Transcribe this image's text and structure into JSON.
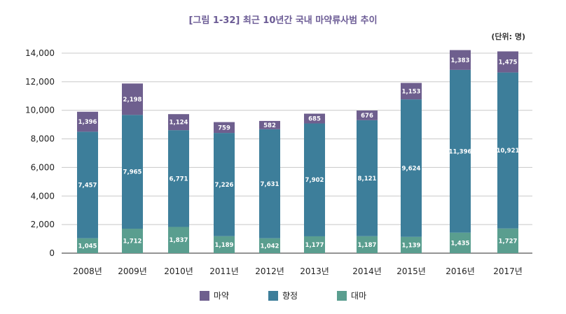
{
  "chart_data": {
    "type": "bar",
    "stacked": true,
    "title": "[그림 1-32] 최근 10년간 국내 마약류사범 추이",
    "unit": "(단위: 명)",
    "categories": [
      "2008년",
      "2009년",
      "2010년",
      "2011년",
      "2012년",
      "2013년",
      "2014년",
      "2015년",
      "2016년",
      "2017년"
    ],
    "series": [
      {
        "name": "대마",
        "color": "#5a9e8f",
        "values": [
          1045,
          1712,
          1837,
          1189,
          1042,
          1177,
          1187,
          1139,
          1435,
          1727
        ],
        "labels": [
          "1,045",
          "1,712",
          "1,837",
          "1,189",
          "1,042",
          "1,177",
          "1,187",
          "1,139",
          "1,435",
          "1,727"
        ]
      },
      {
        "name": "향정",
        "color": "#3d7e9a",
        "values": [
          7457,
          7965,
          6771,
          7226,
          7631,
          7902,
          8121,
          9624,
          11396,
          10921
        ],
        "labels": [
          "7,457",
          "7,965",
          "6,771",
          "7,226",
          "7,631",
          "7,902",
          "8,121",
          "9,624",
          "11,396",
          "10,921"
        ]
      },
      {
        "name": "마약",
        "color": "#6e5f8e",
        "values": [
          1396,
          2198,
          1124,
          759,
          582,
          685,
          676,
          1153,
          1383,
          1475
        ],
        "labels": [
          "1,396",
          "2,198",
          "1,124",
          "759",
          "582",
          "685",
          "676",
          "1,153",
          "1,383",
          "1,475"
        ]
      }
    ],
    "legend_order": [
      "마약",
      "향정",
      "대마"
    ],
    "ylim": [
      0,
      14000
    ],
    "yticks": [
      0,
      2000,
      4000,
      6000,
      8000,
      10000,
      12000,
      14000
    ],
    "ytick_labels": [
      "0",
      "2,000",
      "4,000",
      "6,000",
      "8,000",
      "10,000",
      "12,000",
      "14,000"
    ],
    "grid": true,
    "legend_position": "bottom"
  }
}
